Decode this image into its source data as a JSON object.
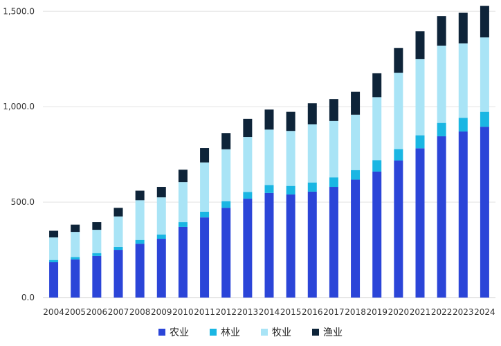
{
  "chart_data": {
    "type": "bar",
    "stacked": true,
    "categories": [
      "2004",
      "2005",
      "2006",
      "2007",
      "2008",
      "2009",
      "2010",
      "2011",
      "2012",
      "2013",
      "2014",
      "2015",
      "2016",
      "2017",
      "2018",
      "2019",
      "2020",
      "2021",
      "2022",
      "2023",
      "2024"
    ],
    "series": [
      {
        "name": "农业",
        "color": "#2b45d8",
        "values": [
          185,
          200,
          218,
          250,
          282,
          308,
          370,
          420,
          470,
          518,
          548,
          540,
          555,
          580,
          618,
          660,
          718,
          782,
          845,
          870,
          895
        ]
      },
      {
        "name": "林业",
        "color": "#1ab6e3",
        "values": [
          12,
          12,
          15,
          15,
          20,
          22,
          25,
          30,
          35,
          35,
          42,
          45,
          48,
          50,
          50,
          60,
          60,
          68,
          70,
          72,
          78
        ]
      },
      {
        "name": "牧业",
        "color": "#a9e4f6",
        "values": [
          118,
          132,
          122,
          160,
          208,
          195,
          210,
          258,
          272,
          288,
          290,
          288,
          305,
          295,
          290,
          330,
          400,
          400,
          405,
          390,
          390
        ]
      },
      {
        "name": "渔业",
        "color": "#0e2439",
        "values": [
          35,
          38,
          40,
          45,
          50,
          55,
          65,
          75,
          85,
          95,
          105,
          100,
          110,
          115,
          120,
          125,
          130,
          145,
          155,
          160,
          165
        ]
      }
    ],
    "ylim": [
      0,
      1530
    ],
    "yticks": [
      0,
      500,
      1000,
      1500
    ],
    "ytick_labels": [
      "0.0",
      "500.0",
      "1,000.0",
      "1,500.0"
    ],
    "grid": true,
    "legend_position": "bottom-center"
  }
}
